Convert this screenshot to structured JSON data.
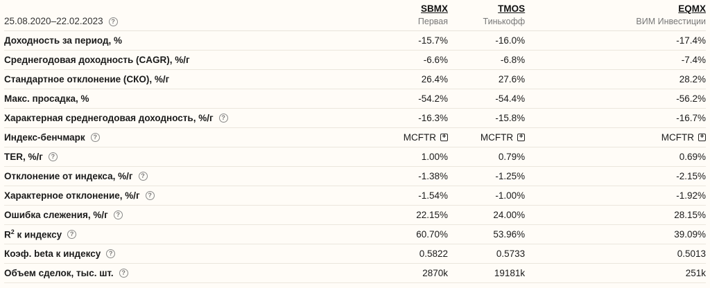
{
  "period": "25.08.2020–22.02.2023",
  "funds": [
    {
      "ticker": "SBMX",
      "name": "Первая"
    },
    {
      "ticker": "TMOS",
      "name": "Тинькофф"
    },
    {
      "ticker": "EQMX",
      "name": "ВИМ Инвестиции"
    }
  ],
  "help_glyph": "?",
  "plus_glyph": "+",
  "r2": {
    "base": "R",
    "sup": "2",
    "rest": " к индексу"
  },
  "rows": [
    {
      "label": "Доходность за период, %",
      "values": [
        "-15.7%",
        "-16.0%",
        "-17.4%"
      ]
    },
    {
      "label": "Среднегодовая доходность (CAGR), %/г",
      "values": [
        "-6.6%",
        "-6.8%",
        "-7.4%"
      ]
    },
    {
      "label": "Стандартное отклонение (СКО), %/г",
      "values": [
        "26.4%",
        "27.6%",
        "28.2%"
      ]
    },
    {
      "label": "Макс. просадка, %",
      "values": [
        "-54.2%",
        "-54.4%",
        "-56.2%"
      ]
    },
    {
      "label": "Характерная среднегодовая доходность, %/г",
      "values": [
        "-16.3%",
        "-15.8%",
        "-16.7%"
      ]
    },
    {
      "label": "Индекс-бенчмарк",
      "values": [
        "MCFTR",
        "MCFTR",
        "MCFTR"
      ]
    },
    {
      "label": "TER, %/г",
      "values": [
        "1.00%",
        "0.79%",
        "0.69%"
      ]
    },
    {
      "label": "Отклонение от индекса, %/г",
      "values": [
        "-1.38%",
        "-1.25%",
        "-2.15%"
      ]
    },
    {
      "label": "Характерное отклонение, %/г",
      "values": [
        "-1.54%",
        "-1.00%",
        "-1.92%"
      ]
    },
    {
      "label": "Ошибка слежения, %/г",
      "values": [
        "22.15%",
        "24.00%",
        "28.15%"
      ]
    },
    {
      "label": "",
      "values": [
        "60.70%",
        "53.96%",
        "39.09%"
      ]
    },
    {
      "label": "Коэф. beta к индексу",
      "values": [
        "0.5822",
        "0.5733",
        "0.5013"
      ]
    },
    {
      "label": "Объем сделок, тыс. шт.",
      "values": [
        "2870k",
        "19181k",
        "251k"
      ]
    }
  ]
}
